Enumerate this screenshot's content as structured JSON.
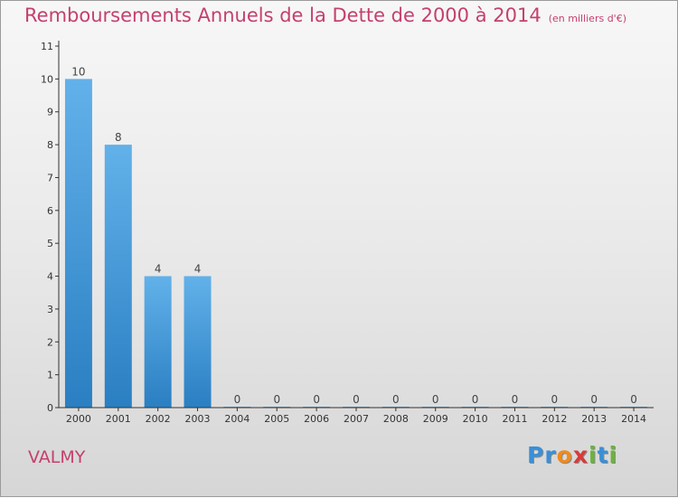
{
  "header": {
    "title": "Remboursements Annuels de la Dette de 2000 à 2014",
    "subtitle": "(en milliers d'€)"
  },
  "footer": {
    "commune": "VALMY",
    "logo_letters": [
      "P",
      "r",
      "o",
      "x",
      "i",
      "t",
      "i"
    ],
    "logo_colors": [
      "#3a8fd6",
      "#3a8fd6",
      "#f08a1c",
      "#d83a3a",
      "#6ab43c",
      "#3a8fd6",
      "#6ab43c"
    ]
  },
  "colors": {
    "title": "#c4406f",
    "bar_light": "#62b1ea",
    "bar_dark": "#2a7fc2",
    "axis": "#333333"
  },
  "chart_data": {
    "type": "bar",
    "categories": [
      "2000",
      "2001",
      "2002",
      "2003",
      "2004",
      "2005",
      "2006",
      "2007",
      "2008",
      "2009",
      "2010",
      "2011",
      "2012",
      "2013",
      "2014"
    ],
    "values": [
      10,
      8,
      4,
      4,
      0,
      0,
      0,
      0,
      0,
      0,
      0,
      0,
      0,
      0,
      0
    ],
    "data_labels": [
      "10",
      "8",
      "4",
      "4",
      "0",
      "0",
      "0",
      "0",
      "0",
      "0",
      "0",
      "0",
      "0",
      "0",
      "0"
    ],
    "y_ticks": [
      0,
      1,
      2,
      3,
      4,
      5,
      6,
      7,
      8,
      9,
      10,
      11
    ],
    "ylim": [
      0,
      11
    ],
    "title": "Remboursements Annuels de la Dette de 2000 à 2014",
    "xlabel": "",
    "ylabel": "",
    "grid": false
  }
}
